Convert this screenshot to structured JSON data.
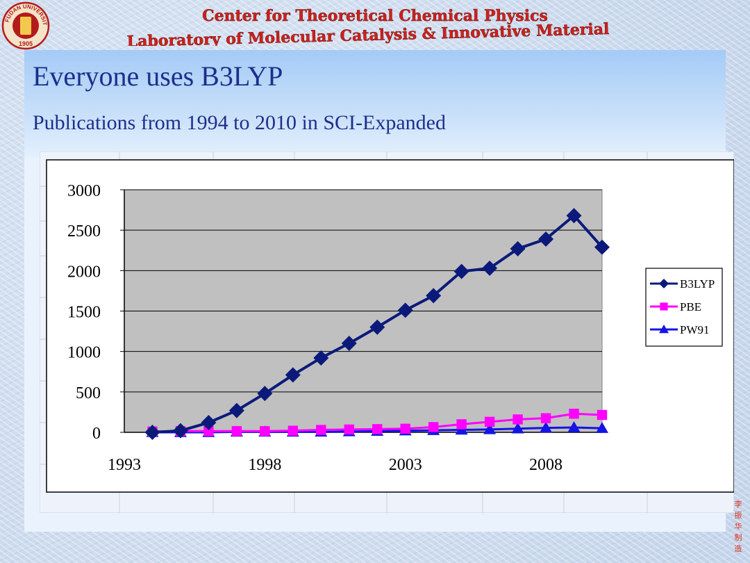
{
  "header": {
    "line1": "Center for Theoretical Chemical Physics",
    "line2": "Laboratory of Molecular Catalysis & Innovative Material"
  },
  "logo": {
    "top_text": "FUDAN UNIVERSITY",
    "year": "1905"
  },
  "slide": {
    "title": "Everyone uses B3LYP",
    "subtitle": "Publications from 1994 to 2010 in SCI-Expanded"
  },
  "signature": [
    "李",
    "振",
    "华",
    "制",
    "造"
  ],
  "chart_data": {
    "type": "line",
    "x": [
      1994,
      1995,
      1996,
      1997,
      1998,
      1999,
      2000,
      2001,
      2002,
      2003,
      2004,
      2005,
      2006,
      2007,
      2008,
      2009,
      2010
    ],
    "series": [
      {
        "name": "B3LYP",
        "color": "#0b1a7a",
        "marker": "diamond",
        "values": [
          0,
          20,
          120,
          270,
          480,
          710,
          920,
          1100,
          1300,
          1510,
          1690,
          1990,
          2030,
          2270,
          2390,
          2680,
          2290
        ]
      },
      {
        "name": "PBE",
        "color": "#ff00ff",
        "marker": "square",
        "values": [
          10,
          15,
          15,
          15,
          15,
          20,
          30,
          35,
          40,
          45,
          65,
          100,
          130,
          160,
          175,
          230,
          215
        ]
      },
      {
        "name": "PW91",
        "color": "#1414e6",
        "marker": "triangle",
        "values": [
          0,
          0,
          0,
          5,
          5,
          5,
          5,
          10,
          15,
          20,
          25,
          30,
          35,
          45,
          55,
          60,
          50
        ]
      }
    ],
    "xticks": [
      1993,
      1998,
      2003,
      2008
    ],
    "yticks": [
      0,
      500,
      1000,
      1500,
      2000,
      2500,
      3000
    ],
    "ylim": [
      0,
      3000
    ],
    "xlim": [
      1993,
      2010
    ],
    "legend": "right",
    "grid": true
  }
}
